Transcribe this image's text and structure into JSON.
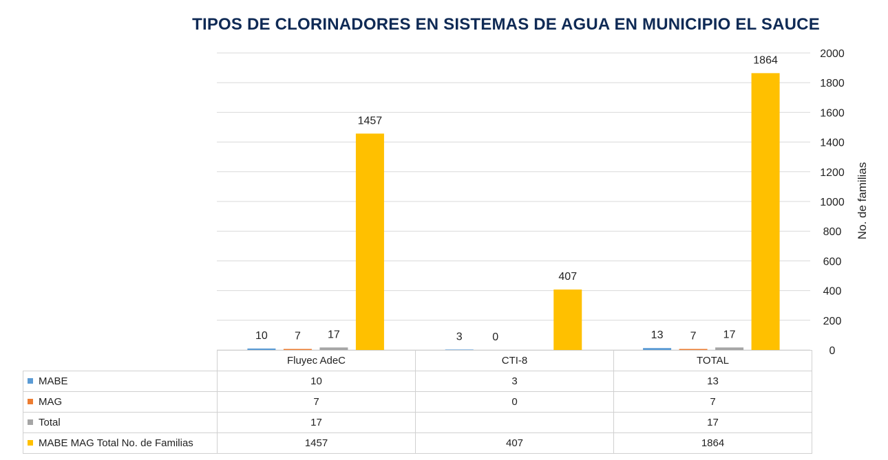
{
  "chart_data": {
    "type": "bar",
    "title": "TIPOS DE CLORINADORES EN SISTEMAS DE AGUA EN MUNICIPIO EL SAUCE",
    "ylabel": "No. de familias",
    "categories": [
      "Fluyec AdeC",
      "CTI-8",
      "TOTAL"
    ],
    "series": [
      {
        "name": "MABE",
        "color": "#5b9bd5",
        "values": [
          10,
          3,
          13
        ],
        "labels": [
          "10",
          "3",
          "13"
        ]
      },
      {
        "name": "MAG",
        "color": "#ed7d31",
        "values": [
          7,
          0,
          7
        ],
        "labels": [
          "7",
          "0",
          "7"
        ]
      },
      {
        "name": "Total",
        "color": "#a5a5a5",
        "values": [
          17,
          null,
          17
        ],
        "labels": [
          "17",
          "",
          "17"
        ]
      },
      {
        "name": "MABE MAG Total No. de Familias",
        "color": "#ffc000",
        "values": [
          1457,
          407,
          1864
        ],
        "labels": [
          "1457",
          "407",
          "1864"
        ]
      }
    ],
    "ylim": [
      0,
      2000
    ],
    "yticks": [
      "0",
      "200",
      "400",
      "600",
      "800",
      "1000",
      "1200",
      "1400",
      "1600",
      "1800",
      "2000"
    ],
    "y_axis_side": "right",
    "grid": true,
    "legend": "data-table"
  }
}
